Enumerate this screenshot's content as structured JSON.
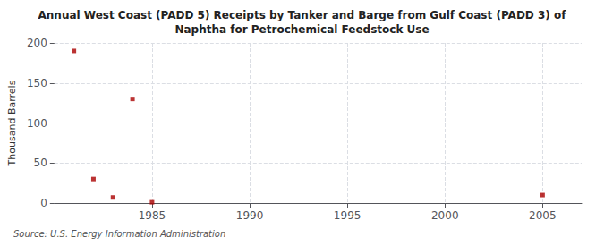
{
  "chart_data": {
    "type": "scatter",
    "title": "Annual West Coast (PADD 5) Receipts by Tanker and Barge from Gulf Coast (PADD 3) of\nNaphtha for Petrochemical Feedstock Use",
    "ylabel": "Thousand Barrels",
    "source": "Source: U.S. Energy Information Administration",
    "x": [
      1981,
      1982,
      1983,
      1984,
      1985,
      2005
    ],
    "values": [
      190,
      30,
      7,
      130,
      1,
      10
    ],
    "color": "#aa0000",
    "marker": "square",
    "xlim": [
      1980,
      2007
    ],
    "xticks": [
      1985,
      1990,
      1995,
      2000,
      2005
    ],
    "ylim": [
      0,
      200
    ],
    "yticks": [
      0,
      50,
      100,
      150,
      200
    ],
    "grid": true
  }
}
